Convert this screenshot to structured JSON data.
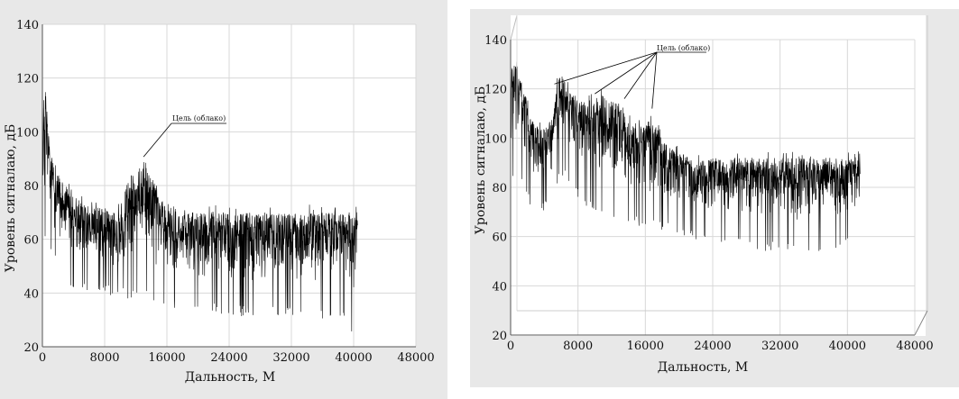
{
  "chart_data": [
    {
      "type": "line",
      "title": "",
      "xlabel": "Дальность, М",
      "ylabel": "Уровень сигналаю, дБ",
      "xlim": [
        0,
        48000
      ],
      "ylim": [
        20,
        140
      ],
      "x_ticks": [
        "0",
        "8000",
        "16000",
        "24000",
        "32000",
        "40000",
        "48000"
      ],
      "y_ticks": [
        "20",
        "40",
        "60",
        "80",
        "100",
        "120",
        "140"
      ],
      "grid": true,
      "annotation": {
        "text": "Цель (облако)",
        "x": 13000,
        "y": 90
      },
      "series": [
        {
          "x": [
            0,
            400,
            1000,
            2000,
            3000,
            4000,
            5000,
            6000,
            7000,
            8000,
            9000,
            10000,
            11000,
            12000,
            13000,
            14000,
            15000,
            16000,
            17000,
            18000,
            19000,
            20000,
            22000,
            24000,
            26000,
            28000,
            30000,
            32000,
            34000,
            36000,
            38000,
            39500,
            40000,
            40500
          ],
          "upper": [
            110,
            116,
            92,
            84,
            80,
            76,
            74,
            73,
            72,
            71,
            70,
            72,
            82,
            86,
            88,
            84,
            76,
            72,
            72,
            70,
            70,
            70,
            70,
            70,
            70,
            70,
            70,
            70,
            70,
            70,
            70,
            70,
            70,
            72
          ],
          "lower": [
            66,
            64,
            60,
            52,
            48,
            46,
            45,
            44,
            44,
            43,
            43,
            42,
            42,
            42,
            42,
            40,
            40,
            40,
            38,
            38,
            38,
            36,
            36,
            36,
            35,
            35,
            35,
            35,
            34,
            34,
            34,
            34,
            24,
            40
          ]
        }
      ]
    },
    {
      "type": "line",
      "title": "",
      "xlabel": "Дальность, М",
      "ylabel": "Уровень сигналаю, дБ",
      "xlim": [
        0,
        48000
      ],
      "ylim": [
        20,
        140
      ],
      "x_ticks": [
        "0",
        "8000",
        "16000",
        "24000",
        "32000",
        "40000",
        "48000"
      ],
      "y_ticks": [
        "20",
        "40",
        "60",
        "80",
        "100",
        "120",
        "140"
      ],
      "grid": true,
      "annotation": {
        "text": "Цель (облако)",
        "targets": [
          [
            5200,
            122
          ],
          [
            10000,
            118
          ],
          [
            13500,
            116
          ],
          [
            16800,
            112
          ]
        ]
      },
      "series": [
        {
          "x": [
            0,
            800,
            1600,
            2400,
            3200,
            4000,
            5000,
            5600,
            6400,
            7200,
            8000,
            9000,
            10000,
            11000,
            12000,
            13000,
            14000,
            15000,
            16000,
            17000,
            18000,
            19000,
            20000,
            22000,
            24000,
            26000,
            28000,
            30000,
            32000,
            34000,
            36000,
            38000,
            40000,
            41500
          ],
          "upper": [
            128,
            132,
            120,
            108,
            104,
            104,
            108,
            124,
            126,
            120,
            116,
            114,
            116,
            118,
            116,
            112,
            108,
            104,
            106,
            108,
            100,
            96,
            94,
            92,
            92,
            92,
            92,
            92,
            92,
            92,
            92,
            92,
            92,
            95
          ],
          "lower": [
            86,
            90,
            84,
            76,
            74,
            74,
            78,
            86,
            88,
            84,
            80,
            76,
            74,
            74,
            72,
            70,
            70,
            68,
            68,
            68,
            66,
            66,
            64,
            62,
            62,
            60,
            60,
            58,
            58,
            58,
            58,
            58,
            60,
            62
          ]
        }
      ]
    }
  ]
}
